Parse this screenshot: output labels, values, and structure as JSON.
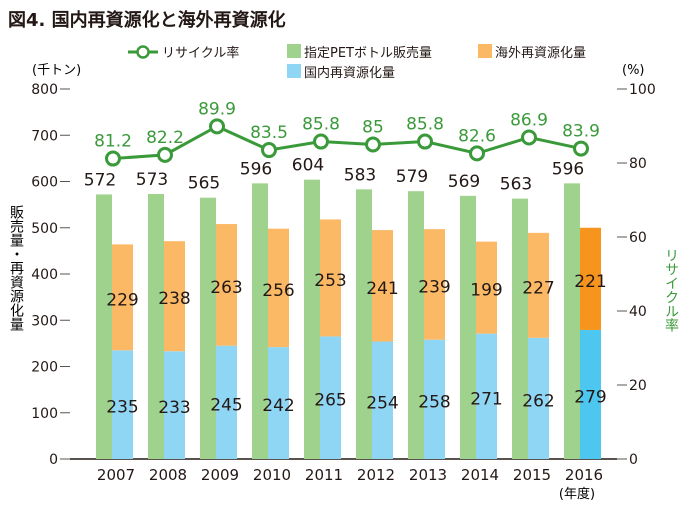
{
  "figure_title": "図4. 国内再資源化と海外再資源化",
  "chart_data": {
    "type": "bar",
    "stacked_series_type": "bar",
    "line_series_type": "line",
    "categories": [
      "2007",
      "2008",
      "2009",
      "2010",
      "2011",
      "2012",
      "2013",
      "2014",
      "2015",
      "2016"
    ],
    "series": [
      {
        "name": "指定PETボトル販売量",
        "type": "bar",
        "axis": "left",
        "color": "#9fd28c",
        "values": [
          572,
          573,
          565,
          596,
          604,
          583,
          579,
          569,
          563,
          596
        ]
      },
      {
        "name": "国内再資源化量",
        "type": "stacked-bar",
        "axis": "left",
        "color": "#8fd6f5",
        "values": [
          235,
          233,
          245,
          242,
          265,
          254,
          258,
          271,
          262,
          279
        ]
      },
      {
        "name": "海外再資源化量",
        "type": "stacked-bar",
        "axis": "left",
        "color": "#fbb966",
        "values": [
          229,
          238,
          263,
          256,
          253,
          241,
          239,
          199,
          227,
          221
        ]
      },
      {
        "name": "リサイクル率",
        "type": "line",
        "axis": "right",
        "color": "#3a9a3a",
        "values": [
          81.2,
          82.2,
          89.9,
          83.5,
          85.8,
          85.0,
          85.8,
          82.6,
          86.9,
          83.9
        ]
      }
    ],
    "highlight_2016_colors": {
      "domestic": "#4dc7f0",
      "overseas": "#f7941d"
    },
    "y_left": {
      "unit": "(千トン)",
      "label": "販売量・再資源化量",
      "min": 0,
      "max": 800,
      "ticks": [
        "0",
        "100",
        "200",
        "300",
        "400",
        "500",
        "600",
        "700",
        "800"
      ]
    },
    "y_right": {
      "unit": "(%)",
      "label": "リサイクル率",
      "min": 0,
      "max": 100,
      "ticks": [
        "0",
        "20",
        "40",
        "60",
        "80",
        "100"
      ]
    },
    "x_unit": "(年度)",
    "legend": [
      {
        "label": "リサイクル率",
        "kind": "line-marker",
        "color": "#3a9a3a"
      },
      {
        "label": "指定PETボトル販売量",
        "kind": "box",
        "color": "#9fd28c"
      },
      {
        "label": "海外再資源化量",
        "kind": "box",
        "color": "#fbb966"
      },
      {
        "label": "国内再資源化量",
        "kind": "box",
        "color": "#8fd6f5"
      }
    ],
    "legend_position": "top",
    "grid": false
  }
}
